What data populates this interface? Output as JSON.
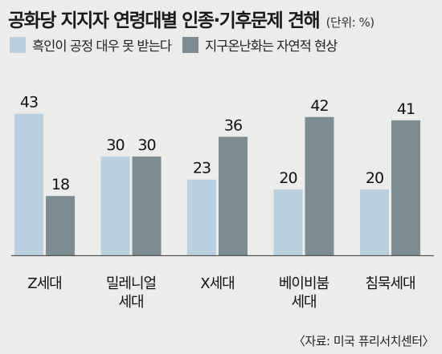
{
  "header": {
    "title": "공화당 지지자 연령대별 인종·기후문제 견해",
    "unit": "(단위: %)"
  },
  "source": "〈자료: 미국 퓨리서치센터〉",
  "colors": {
    "series1": "#b8d0df",
    "series2": "#7b8c92"
  },
  "chart_data": {
    "type": "bar",
    "title": "공화당 지지자 연령대별 인종·기후문제 견해",
    "unit": "%",
    "categories": [
      "Z세대",
      "밀레니얼 세대",
      "X세대",
      "베이비붐 세대",
      "침묵세대"
    ],
    "series": [
      {
        "name": "흑인이 공정 대우 못 받는다",
        "values": [
          43,
          30,
          23,
          20,
          20
        ]
      },
      {
        "name": "지구온난화는 자연적 현상",
        "values": [
          18,
          30,
          36,
          42,
          41
        ]
      }
    ],
    "ylim": [
      0,
      50
    ],
    "grid": false,
    "legend": "top-left"
  }
}
